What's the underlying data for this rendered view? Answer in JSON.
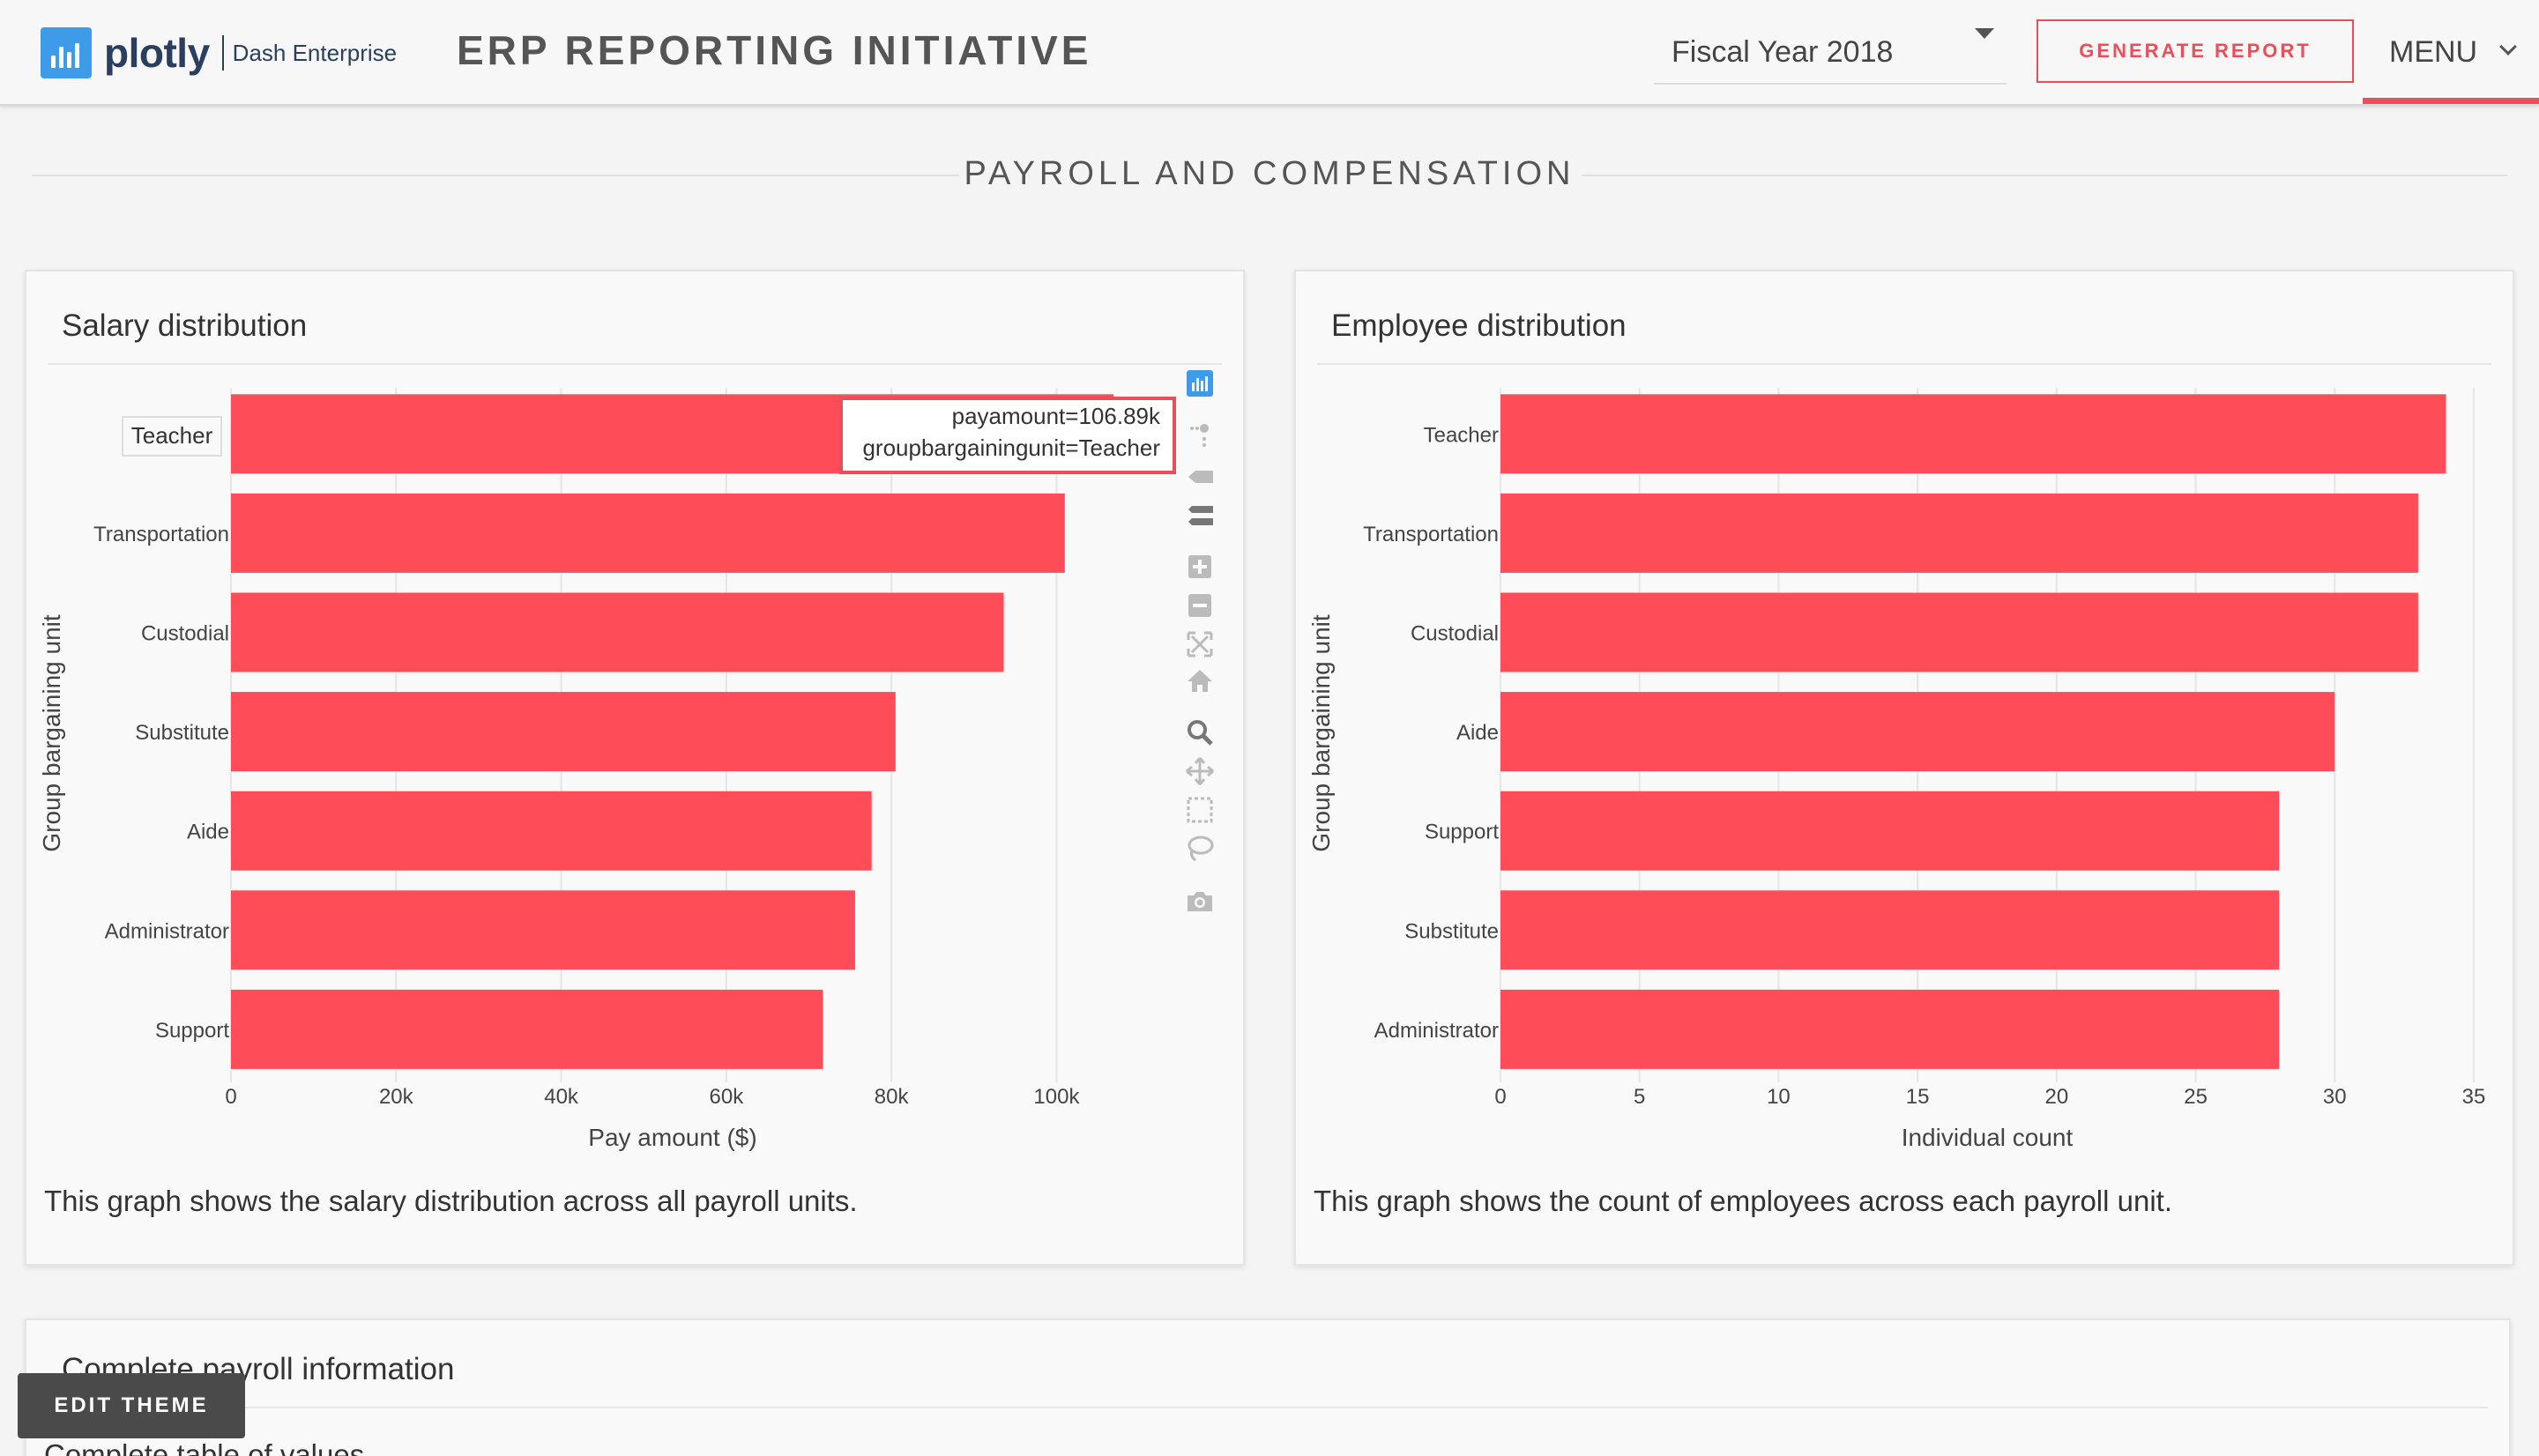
{
  "header": {
    "logo_word": "plotly",
    "logo_sub": "Dash Enterprise",
    "app_title": "ERP REPORTING INITIATIVE",
    "fiscal_year": "Fiscal Year 2018",
    "generate_label": "GENERATE REPORT",
    "menu_label": "MENU"
  },
  "section": {
    "title": "PAYROLL AND COMPENSATION"
  },
  "salary_card": {
    "title": "Salary distribution",
    "description": "This graph shows the salary distribution across all payroll units.",
    "tooltip": {
      "line1": "payamount=106.89k",
      "line2": "groupbargainingunit=Teacher"
    },
    "hover_label": "Teacher"
  },
  "employee_card": {
    "title": "Employee distribution",
    "description": "This graph shows the count of employees across each payroll unit."
  },
  "payroll_card": {
    "title": "Complete payroll information",
    "subtitle": "Complete table of values"
  },
  "edit_theme_label": "EDIT THEME",
  "modebar_icons": [
    "plotly-logo-icon",
    "compare-hover-icon",
    "closest-hover-icon",
    "spike-lines-icon",
    "zoom-in-icon",
    "zoom-out-icon",
    "autoscale-icon",
    "home-icon",
    "zoom-icon",
    "pan-icon",
    "box-select-icon",
    "lasso-icon",
    "camera-icon"
  ],
  "colors": {
    "accent": "#fe4d58",
    "brand": "#3d9be9"
  },
  "chart_data": [
    {
      "type": "bar",
      "orientation": "horizontal",
      "categories": [
        "Teacher",
        "Transportation",
        "Custodial",
        "Substitute",
        "Aide",
        "Administrator",
        "Support"
      ],
      "values": [
        106890,
        101000,
        93600,
        80500,
        77600,
        75600,
        71700
      ],
      "xlabel": "Pay amount ($)",
      "ylabel": "Group bargaining unit",
      "xlim": [
        0,
        107000
      ],
      "xticks": [
        0,
        20000,
        40000,
        60000,
        80000,
        100000
      ],
      "xtick_labels": [
        "0",
        "20k",
        "40k",
        "60k",
        "80k",
        "100k"
      ],
      "grid": true
    },
    {
      "type": "bar",
      "orientation": "horizontal",
      "categories": [
        "Teacher",
        "Transportation",
        "Custodial",
        "Aide",
        "Support",
        "Substitute",
        "Administrator"
      ],
      "values": [
        34,
        33,
        33,
        30,
        28,
        28,
        28
      ],
      "xlabel": "Individual count",
      "ylabel": "Group bargaining unit",
      "xlim": [
        0,
        35
      ],
      "xticks": [
        0,
        5,
        10,
        15,
        20,
        25,
        30,
        35
      ],
      "xtick_labels": [
        "0",
        "5",
        "10",
        "15",
        "20",
        "25",
        "30",
        "35"
      ],
      "grid": true
    }
  ]
}
